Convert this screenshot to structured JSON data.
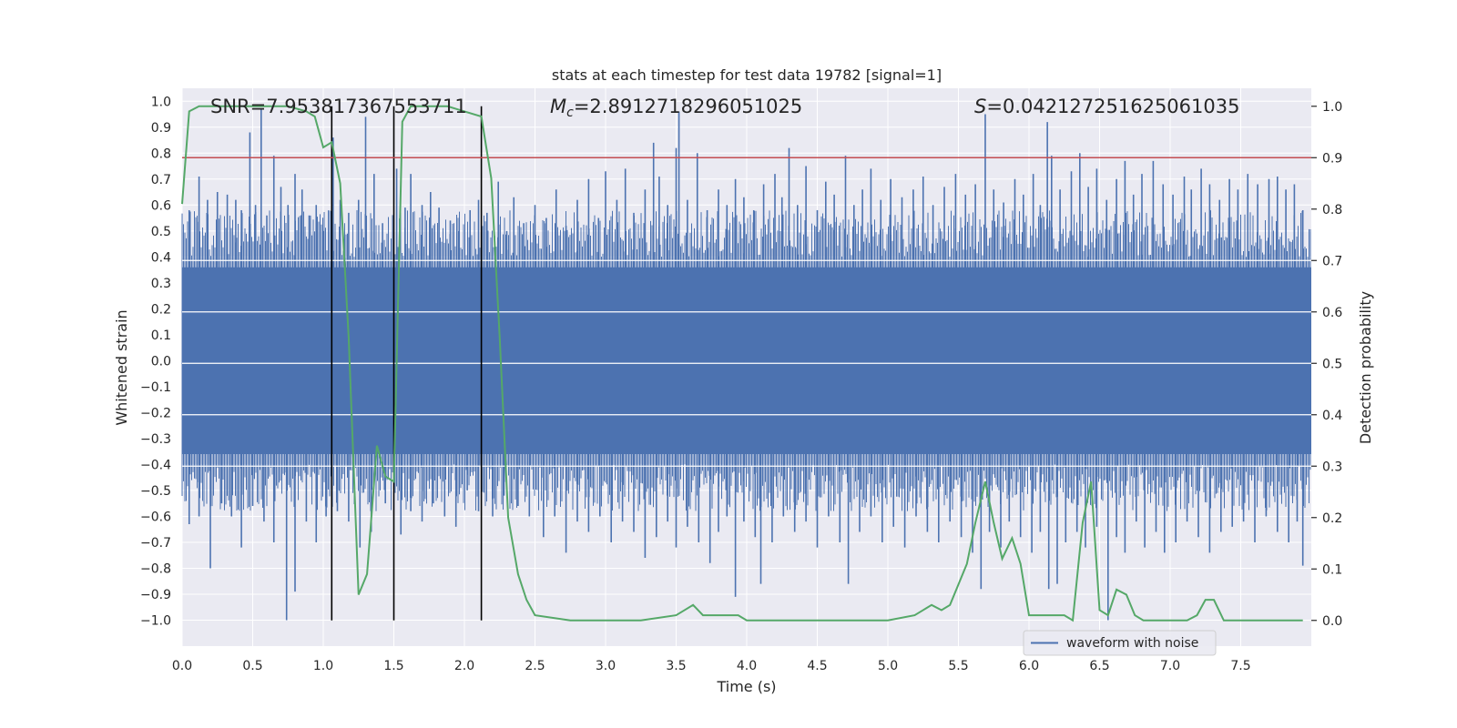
{
  "chart_data": {
    "type": "line",
    "title": "stats at each timestep for test data 19782 [signal=1]",
    "xlabel": "Time (s)",
    "ylabel_left": "Whitened strain",
    "ylabel_right": "Detection probability",
    "xlim": [
      0.0,
      8.0
    ],
    "ylim_left": [
      -1.1,
      1.05
    ],
    "ylim_right": [
      -0.05,
      1.035
    ],
    "x_ticks": [
      0.0,
      0.5,
      1.0,
      1.5,
      2.0,
      2.5,
      3.0,
      3.5,
      4.0,
      4.5,
      5.0,
      5.5,
      6.0,
      6.5,
      7.0,
      7.5
    ],
    "x_tick_labels": [
      "0.0",
      "0.5",
      "1.0",
      "1.5",
      "2.0",
      "2.5",
      "3.0",
      "3.5",
      "4.0",
      "4.5",
      "5.0",
      "5.5",
      "6.0",
      "6.5",
      "7.0",
      "7.5"
    ],
    "y_left_ticks": [
      1.0,
      0.9,
      0.8,
      0.7,
      0.6,
      0.5,
      0.4,
      0.3,
      0.2,
      0.1,
      0.0,
      -0.1,
      -0.2,
      -0.3,
      -0.4,
      -0.5,
      -0.6,
      -0.7,
      -0.8,
      -0.9,
      -1.0
    ],
    "y_left_tick_labels": [
      "1.0",
      "0.9",
      "0.8",
      "0.7",
      "0.6",
      "0.5",
      "0.4",
      "0.3",
      "0.2",
      "0.1",
      "0.0",
      "−0.1",
      "−0.2",
      "−0.3",
      "−0.4",
      "−0.5",
      "−0.6",
      "−0.7",
      "−0.8",
      "−0.9",
      "−1.0"
    ],
    "y_right_ticks": [
      1.0,
      0.9,
      0.8,
      0.7,
      0.6,
      0.5,
      0.4,
      0.3,
      0.2,
      0.1,
      0.0
    ],
    "y_right_tick_labels": [
      "1.0",
      "0.9",
      "0.8",
      "0.7",
      "0.6",
      "0.5",
      "0.4",
      "0.3",
      "0.2",
      "0.1",
      "0.0"
    ],
    "annotations": {
      "snr": "SNR=7.953817367553711",
      "mc_symbol": "M",
      "mc_sub": "c",
      "mc_value": "=2.8912718296051025",
      "s_symbol": "S",
      "s_value": "=0.042127251625061035"
    },
    "threshold": {
      "value": 0.9,
      "axis": "right",
      "color": "#c44e52"
    },
    "vertical_lines": [
      1.06,
      1.5,
      2.12
    ],
    "legend": {
      "label": "waveform with noise",
      "position": "bottom-right"
    },
    "series": [
      {
        "name": "waveform with noise",
        "axis": "left",
        "color": "#4c72b0",
        "envelope_core": 0.36,
        "positive_spikes": [
          [
            0.05,
            0.58
          ],
          [
            0.12,
            0.71
          ],
          [
            0.18,
            0.62
          ],
          [
            0.25,
            0.65
          ],
          [
            0.32,
            0.64
          ],
          [
            0.38,
            0.62
          ],
          [
            0.42,
            0.58
          ],
          [
            0.48,
            0.88
          ],
          [
            0.52,
            0.6
          ],
          [
            0.56,
            0.97
          ],
          [
            0.6,
            0.56
          ],
          [
            0.65,
            0.79
          ],
          [
            0.7,
            0.67
          ],
          [
            0.75,
            0.6
          ],
          [
            0.8,
            0.72
          ],
          [
            0.85,
            0.66
          ],
          [
            0.9,
            0.56
          ],
          [
            0.95,
            0.6
          ],
          [
            1.0,
            0.5
          ],
          [
            1.07,
            0.86
          ],
          [
            1.12,
            0.62
          ],
          [
            1.18,
            0.57
          ],
          [
            1.25,
            0.62
          ],
          [
            1.3,
            0.94
          ],
          [
            1.36,
            0.72
          ],
          [
            1.42,
            0.53
          ],
          [
            1.52,
            0.74
          ],
          [
            1.58,
            0.59
          ],
          [
            1.62,
            0.72
          ],
          [
            1.7,
            0.6
          ],
          [
            1.76,
            0.65
          ],
          [
            1.82,
            0.59
          ],
          [
            1.9,
            0.54
          ],
          [
            1.96,
            0.5
          ],
          [
            2.04,
            0.58
          ],
          [
            2.1,
            0.62
          ],
          [
            2.16,
            0.57
          ],
          [
            2.24,
            0.69
          ],
          [
            2.3,
            0.5
          ],
          [
            2.35,
            0.63
          ],
          [
            2.42,
            0.53
          ],
          [
            2.5,
            0.6
          ],
          [
            2.58,
            0.55
          ],
          [
            2.65,
            0.66
          ],
          [
            2.72,
            0.52
          ],
          [
            2.8,
            0.62
          ],
          [
            2.88,
            0.7
          ],
          [
            2.95,
            0.55
          ],
          [
            3.0,
            0.73
          ],
          [
            3.08,
            0.62
          ],
          [
            3.14,
            0.74
          ],
          [
            3.2,
            0.57
          ],
          [
            3.28,
            0.66
          ],
          [
            3.34,
            0.84
          ],
          [
            3.38,
            0.71
          ],
          [
            3.44,
            0.6
          ],
          [
            3.5,
            0.82
          ],
          [
            3.52,
            0.96
          ],
          [
            3.58,
            0.62
          ],
          [
            3.65,
            0.8
          ],
          [
            3.72,
            0.58
          ],
          [
            3.8,
            0.66
          ],
          [
            3.86,
            0.6
          ],
          [
            3.92,
            0.7
          ],
          [
            3.98,
            0.63
          ],
          [
            4.05,
            0.58
          ],
          [
            4.12,
            0.68
          ],
          [
            4.2,
            0.72
          ],
          [
            4.25,
            0.63
          ],
          [
            4.3,
            0.82
          ],
          [
            4.36,
            0.6
          ],
          [
            4.42,
            0.75
          ],
          [
            4.5,
            0.58
          ],
          [
            4.56,
            0.69
          ],
          [
            4.62,
            0.64
          ],
          [
            4.7,
            0.79
          ],
          [
            4.76,
            0.6
          ],
          [
            4.82,
            0.66
          ],
          [
            4.88,
            0.74
          ],
          [
            4.95,
            0.62
          ],
          [
            5.02,
            0.7
          ],
          [
            5.1,
            0.63
          ],
          [
            5.18,
            0.66
          ],
          [
            5.25,
            0.71
          ],
          [
            5.32,
            0.6
          ],
          [
            5.4,
            0.67
          ],
          [
            5.48,
            0.72
          ],
          [
            5.55,
            0.64
          ],
          [
            5.62,
            0.68
          ],
          [
            5.69,
            0.95
          ],
          [
            5.75,
            0.66
          ],
          [
            5.82,
            0.61
          ],
          [
            5.9,
            0.7
          ],
          [
            5.96,
            0.64
          ],
          [
            6.03,
            0.72
          ],
          [
            6.08,
            0.6
          ],
          [
            6.13,
            0.92
          ],
          [
            6.16,
            0.79
          ],
          [
            6.22,
            0.66
          ],
          [
            6.3,
            0.73
          ],
          [
            6.36,
            0.8
          ],
          [
            6.42,
            0.67
          ],
          [
            6.48,
            0.74
          ],
          [
            6.55,
            0.62
          ],
          [
            6.62,
            0.7
          ],
          [
            6.68,
            0.77
          ],
          [
            6.74,
            0.64
          ],
          [
            6.8,
            0.72
          ],
          [
            6.88,
            0.77
          ],
          [
            6.95,
            0.68
          ],
          [
            7.02,
            0.64
          ],
          [
            7.1,
            0.71
          ],
          [
            7.15,
            0.66
          ],
          [
            7.22,
            0.74
          ],
          [
            7.28,
            0.68
          ],
          [
            7.35,
            0.62
          ],
          [
            7.42,
            0.7
          ],
          [
            7.48,
            0.66
          ],
          [
            7.55,
            0.72
          ],
          [
            7.62,
            0.68
          ],
          [
            7.7,
            0.7
          ],
          [
            7.76,
            0.71
          ],
          [
            7.82,
            0.66
          ],
          [
            7.88,
            0.68
          ],
          [
            7.94,
            0.58
          ]
        ],
        "negative_spikes": [
          [
            0.05,
            -0.63
          ],
          [
            0.12,
            -0.6
          ],
          [
            0.2,
            -0.8
          ],
          [
            0.28,
            -0.55
          ],
          [
            0.35,
            -0.6
          ],
          [
            0.42,
            -0.72
          ],
          [
            0.5,
            -0.56
          ],
          [
            0.58,
            -0.62
          ],
          [
            0.65,
            -0.7
          ],
          [
            0.74,
            -1.0
          ],
          [
            0.8,
            -0.89
          ],
          [
            0.88,
            -0.62
          ],
          [
            0.95,
            -0.7
          ],
          [
            1.02,
            -0.6
          ],
          [
            1.1,
            -0.58
          ],
          [
            1.18,
            -0.62
          ],
          [
            1.26,
            -0.72
          ],
          [
            1.34,
            -0.66
          ],
          [
            1.44,
            -0.55
          ],
          [
            1.55,
            -0.67
          ],
          [
            1.62,
            -0.58
          ],
          [
            1.7,
            -0.62
          ],
          [
            1.78,
            -0.55
          ],
          [
            1.86,
            -0.6
          ],
          [
            1.94,
            -0.64
          ],
          [
            2.02,
            -0.5
          ],
          [
            2.1,
            -0.58
          ],
          [
            2.2,
            -0.6
          ],
          [
            2.28,
            -0.52
          ],
          [
            2.38,
            -0.56
          ],
          [
            2.46,
            -0.6
          ],
          [
            2.56,
            -0.68
          ],
          [
            2.64,
            -0.6
          ],
          [
            2.72,
            -0.74
          ],
          [
            2.8,
            -0.62
          ],
          [
            2.88,
            -0.66
          ],
          [
            2.96,
            -0.6
          ],
          [
            3.04,
            -0.7
          ],
          [
            3.12,
            -0.62
          ],
          [
            3.2,
            -0.66
          ],
          [
            3.28,
            -0.76
          ],
          [
            3.36,
            -0.68
          ],
          [
            3.44,
            -0.62
          ],
          [
            3.5,
            -0.72
          ],
          [
            3.58,
            -0.64
          ],
          [
            3.66,
            -0.7
          ],
          [
            3.74,
            -0.78
          ],
          [
            3.8,
            -0.66
          ],
          [
            3.86,
            -0.6
          ],
          [
            3.92,
            -0.91
          ],
          [
            3.98,
            -0.62
          ],
          [
            4.06,
            -0.68
          ],
          [
            4.1,
            -0.86
          ],
          [
            4.18,
            -0.7
          ],
          [
            4.26,
            -0.6
          ],
          [
            4.34,
            -0.66
          ],
          [
            4.42,
            -0.62
          ],
          [
            4.5,
            -0.72
          ],
          [
            4.58,
            -0.6
          ],
          [
            4.66,
            -0.7
          ],
          [
            4.72,
            -0.86
          ],
          [
            4.8,
            -0.66
          ],
          [
            4.88,
            -0.6
          ],
          [
            4.96,
            -0.7
          ],
          [
            5.04,
            -0.64
          ],
          [
            5.12,
            -0.72
          ],
          [
            5.2,
            -0.6
          ],
          [
            5.28,
            -0.66
          ],
          [
            5.36,
            -0.7
          ],
          [
            5.44,
            -0.62
          ],
          [
            5.52,
            -0.68
          ],
          [
            5.6,
            -0.74
          ],
          [
            5.66,
            -0.88
          ],
          [
            5.72,
            -0.66
          ],
          [
            5.8,
            -0.72
          ],
          [
            5.86,
            -0.62
          ],
          [
            5.94,
            -0.68
          ],
          [
            6.02,
            -0.74
          ],
          [
            6.08,
            -0.66
          ],
          [
            6.14,
            -0.88
          ],
          [
            6.2,
            -0.86
          ],
          [
            6.26,
            -0.7
          ],
          [
            6.34,
            -0.66
          ],
          [
            6.4,
            -0.72
          ],
          [
            6.48,
            -0.64
          ],
          [
            6.56,
            -1.0
          ],
          [
            6.62,
            -0.68
          ],
          [
            6.68,
            -0.74
          ],
          [
            6.76,
            -0.62
          ],
          [
            6.82,
            -0.72
          ],
          [
            6.9,
            -0.66
          ],
          [
            6.96,
            -0.74
          ],
          [
            7.04,
            -0.7
          ],
          [
            7.12,
            -0.62
          ],
          [
            7.2,
            -0.68
          ],
          [
            7.28,
            -0.74
          ],
          [
            7.36,
            -0.66
          ],
          [
            7.44,
            -0.64
          ],
          [
            7.52,
            -0.62
          ],
          [
            7.6,
            -0.7
          ],
          [
            7.68,
            -0.6
          ],
          [
            7.76,
            -0.66
          ],
          [
            7.84,
            -0.7
          ],
          [
            7.9,
            -0.62
          ],
          [
            7.94,
            -0.79
          ]
        ]
      },
      {
        "name": "Detection probability",
        "axis": "right",
        "color": "#55a868",
        "x": [
          0.0,
          0.05,
          0.12,
          0.25,
          0.5,
          0.75,
          0.88,
          0.94,
          1.0,
          1.06,
          1.12,
          1.18,
          1.25,
          1.31,
          1.38,
          1.44,
          1.5,
          1.56,
          1.62,
          1.75,
          1.88,
          2.0,
          2.12,
          2.19,
          2.25,
          2.31,
          2.38,
          2.44,
          2.5,
          2.75,
          2.9,
          3.0,
          3.25,
          3.5,
          3.56,
          3.62,
          3.69,
          3.75,
          3.81,
          3.88,
          3.94,
          4.0,
          4.25,
          4.5,
          4.69,
          4.75,
          4.88,
          5.0,
          5.19,
          5.25,
          5.31,
          5.38,
          5.44,
          5.5,
          5.56,
          5.62,
          5.69,
          5.75,
          5.81,
          5.88,
          5.94,
          6.0,
          6.06,
          6.12,
          6.19,
          6.25,
          6.31,
          6.38,
          6.44,
          6.5,
          6.56,
          6.62,
          6.69,
          6.75,
          6.81,
          6.88,
          7.0,
          7.12,
          7.19,
          7.25,
          7.31,
          7.38,
          7.5,
          7.75,
          7.94
        ],
        "values": [
          0.81,
          0.99,
          1.0,
          1.0,
          1.0,
          1.0,
          0.99,
          0.98,
          0.92,
          0.93,
          0.85,
          0.55,
          0.05,
          0.09,
          0.34,
          0.28,
          0.27,
          0.97,
          1.0,
          1.0,
          1.0,
          0.99,
          0.98,
          0.86,
          0.55,
          0.2,
          0.09,
          0.04,
          0.01,
          0.0,
          0.0,
          0.0,
          0.0,
          0.01,
          0.02,
          0.03,
          0.01,
          0.01,
          0.01,
          0.01,
          0.01,
          0.0,
          0.0,
          0.0,
          0.0,
          0.0,
          0.0,
          0.0,
          0.01,
          0.02,
          0.03,
          0.02,
          0.03,
          0.07,
          0.11,
          0.19,
          0.27,
          0.19,
          0.12,
          0.16,
          0.11,
          0.01,
          0.01,
          0.01,
          0.01,
          0.01,
          0.0,
          0.19,
          0.27,
          0.02,
          0.01,
          0.06,
          0.05,
          0.01,
          0.0,
          0.0,
          0.0,
          0.0,
          0.01,
          0.04,
          0.04,
          0.0,
          0.0,
          0.0,
          0.0
        ]
      }
    ]
  }
}
